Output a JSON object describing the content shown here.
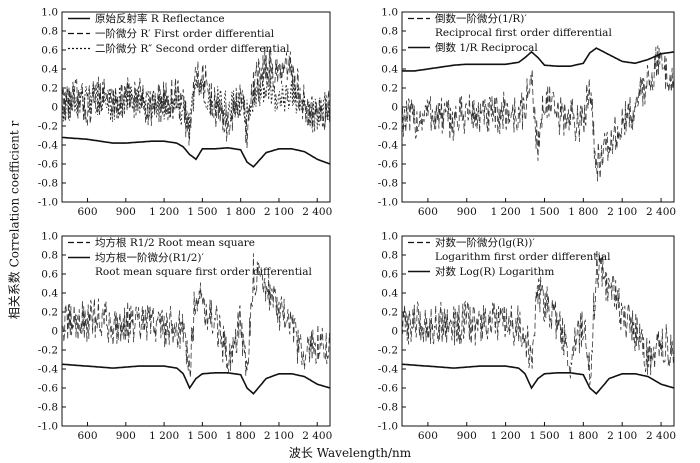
{
  "figure": {
    "shared_ylabel": "相关系数 Correlation coefficient r",
    "shared_xlabel": "波长 Wavelength/nm"
  },
  "chart_data": [
    {
      "type": "line",
      "panel": "top-left",
      "xlim": [
        400,
        2500
      ],
      "ylim": [
        -1.0,
        1.0
      ],
      "xticks": [
        600,
        900,
        1200,
        1500,
        1800,
        2100,
        2400
      ],
      "xtick_labels": [
        "600",
        "900",
        "1 200",
        "1 500",
        "1 800",
        "2 100",
        "2 400"
      ],
      "yticks": [
        1.0,
        0.8,
        0.6,
        0.4,
        0.2,
        0,
        -0.2,
        -0.4,
        -0.6,
        -0.8,
        -1.0
      ],
      "ytick_labels": [
        "1.0",
        "0.8",
        "0.6",
        "0.4",
        "0.2",
        "0",
        "-0.2",
        "-0.4",
        "-0.6",
        "-0.8",
        "-1.0"
      ],
      "legend": [
        {
          "style": "solid",
          "text": "原始反射率 R Reflectance"
        },
        {
          "style": "dashed",
          "text": "一阶微分 R′ First order differential"
        },
        {
          "style": "dotted",
          "text": "二阶微分 R″ Second order differential"
        }
      ],
      "series": [
        {
          "name": "原始反射率 R Reflectance",
          "style": "solid",
          "x": [
            400,
            500,
            600,
            700,
            800,
            900,
            1000,
            1100,
            1200,
            1300,
            1350,
            1400,
            1450,
            1500,
            1600,
            1700,
            1800,
            1850,
            1900,
            2000,
            2100,
            2200,
            2300,
            2400,
            2500
          ],
          "y": [
            -0.32,
            -0.33,
            -0.34,
            -0.36,
            -0.38,
            -0.38,
            -0.37,
            -0.36,
            -0.36,
            -0.38,
            -0.42,
            -0.5,
            -0.55,
            -0.44,
            -0.44,
            -0.43,
            -0.45,
            -0.58,
            -0.63,
            -0.48,
            -0.44,
            -0.44,
            -0.47,
            -0.55,
            -0.6
          ]
        },
        {
          "name": "一阶微分 R′ First order differential",
          "style": "dashed",
          "x": [
            400,
            500,
            600,
            700,
            800,
            900,
            1000,
            1100,
            1200,
            1300,
            1350,
            1400,
            1450,
            1500,
            1600,
            1700,
            1800,
            1850,
            1900,
            2000,
            2100,
            2200,
            2300,
            2400,
            2500
          ],
          "y": [
            0.05,
            0.1,
            0.0,
            0.15,
            0.05,
            0.1,
            0.1,
            0.0,
            0.05,
            0.1,
            0.0,
            -0.3,
            0.4,
            0.3,
            0.0,
            -0.2,
            0.1,
            -0.3,
            0.2,
            0.45,
            0.3,
            0.4,
            0.0,
            -0.1,
            0.0
          ]
        },
        {
          "name": "二阶微分 R″ Second order differential",
          "style": "dotted",
          "x": [
            400,
            500,
            600,
            700,
            800,
            900,
            1000,
            1100,
            1200,
            1300,
            1350,
            1400,
            1450,
            1500,
            1600,
            1700,
            1800,
            1850,
            1900,
            2000,
            2100,
            2200,
            2300,
            2400,
            2500
          ],
          "y": [
            0.0,
            0.05,
            0.05,
            0.1,
            0.0,
            0.1,
            0.05,
            0.05,
            0.0,
            0.05,
            -0.05,
            -0.2,
            0.2,
            0.1,
            0.05,
            0.0,
            0.05,
            -0.1,
            0.1,
            0.2,
            0.1,
            0.15,
            0.0,
            -0.1,
            0.05
          ]
        }
      ]
    },
    {
      "type": "line",
      "panel": "top-right",
      "xlim": [
        400,
        2500
      ],
      "ylim": [
        -1.0,
        1.0
      ],
      "xticks": [
        600,
        900,
        1200,
        1500,
        1800,
        2100,
        2400
      ],
      "xtick_labels": [
        "600",
        "900",
        "1 200",
        "1 500",
        "1 800",
        "2 100",
        "2 400"
      ],
      "yticks": [
        1.0,
        0.8,
        0.6,
        0.4,
        0.2,
        0,
        -0.2,
        -0.4,
        -0.6,
        -0.8,
        -1.0
      ],
      "ytick_labels": [
        "1.0",
        "0.8",
        "0.6",
        "0.4",
        "0.2",
        "0",
        "-0.2",
        "-0.4",
        "-0.6",
        "-0.8",
        "-1.0"
      ],
      "legend": [
        {
          "style": "dashed",
          "text": "倒数一阶微分(1/R)′",
          "text2": "Reciprocal first order differential"
        },
        {
          "style": "solid",
          "text": "倒数 1/R Reciprocal"
        }
      ],
      "series": [
        {
          "name": "倒数一阶微分(1/R)′",
          "style": "dashed",
          "x": [
            400,
            500,
            600,
            700,
            800,
            900,
            1000,
            1100,
            1200,
            1300,
            1350,
            1400,
            1450,
            1500,
            1600,
            1700,
            1800,
            1850,
            1900,
            2000,
            2100,
            2200,
            2300,
            2400,
            2500
          ],
          "y": [
            -0.1,
            -0.15,
            -0.05,
            -0.1,
            -0.15,
            -0.05,
            -0.1,
            -0.1,
            -0.05,
            -0.1,
            0.0,
            0.3,
            -0.45,
            0.1,
            -0.1,
            -0.1,
            -0.2,
            0.3,
            -0.6,
            -0.4,
            -0.2,
            0.0,
            0.3,
            0.5,
            0.2
          ]
        },
        {
          "name": "倒数 1/R Reciprocal",
          "style": "solid",
          "x": [
            400,
            500,
            600,
            700,
            800,
            900,
            1000,
            1100,
            1200,
            1300,
            1350,
            1400,
            1450,
            1500,
            1600,
            1700,
            1800,
            1850,
            1900,
            2000,
            2100,
            2200,
            2300,
            2400,
            2500
          ],
          "y": [
            0.38,
            0.38,
            0.4,
            0.42,
            0.44,
            0.45,
            0.45,
            0.45,
            0.45,
            0.47,
            0.52,
            0.58,
            0.52,
            0.44,
            0.43,
            0.43,
            0.46,
            0.57,
            0.62,
            0.55,
            0.48,
            0.46,
            0.5,
            0.56,
            0.58
          ]
        }
      ]
    },
    {
      "type": "line",
      "panel": "bottom-left",
      "xlim": [
        400,
        2500
      ],
      "ylim": [
        -1.0,
        1.0
      ],
      "xticks": [
        600,
        900,
        1200,
        1500,
        1800,
        2100,
        2400
      ],
      "xtick_labels": [
        "600",
        "900",
        "1 200",
        "1 500",
        "1 800",
        "2 100",
        "2 400"
      ],
      "yticks": [
        1.0,
        0.8,
        0.6,
        0.4,
        0.2,
        0,
        -0.2,
        -0.4,
        -0.6,
        -0.8,
        -1.0
      ],
      "ytick_labels": [
        "1.0",
        "0.8",
        "0.6",
        "0.4",
        "0.2",
        "0",
        "-0.2",
        "-0.4",
        "-0.6",
        "-0.8",
        "-1.0"
      ],
      "legend": [
        {
          "style": "dashed",
          "text": "均方根 R1/2 Root mean square"
        },
        {
          "style": "solid",
          "text": "均方根一阶微分(R1/2)′",
          "text2": "Root mean square first order differential"
        }
      ],
      "series": [
        {
          "name": "均方根 R1/2 Root mean square",
          "style": "dashed",
          "x": [
            400,
            500,
            600,
            700,
            800,
            900,
            1000,
            1100,
            1200,
            1300,
            1350,
            1400,
            1450,
            1500,
            1600,
            1700,
            1800,
            1850,
            1900,
            2000,
            2100,
            2200,
            2300,
            2400,
            2500
          ],
          "y": [
            0.05,
            0.1,
            0.1,
            0.15,
            0.05,
            0.1,
            0.05,
            0.1,
            0.05,
            0.05,
            0.0,
            -0.4,
            0.45,
            0.3,
            0.1,
            -0.3,
            0.1,
            -0.5,
            0.6,
            0.5,
            0.2,
            0.0,
            -0.3,
            -0.1,
            -0.2
          ]
        },
        {
          "name": "均方根一阶微分(R1/2)′",
          "style": "solid",
          "x": [
            400,
            500,
            600,
            700,
            800,
            900,
            1000,
            1100,
            1200,
            1300,
            1350,
            1400,
            1450,
            1500,
            1600,
            1700,
            1800,
            1850,
            1900,
            2000,
            2100,
            2200,
            2300,
            2400,
            2500
          ],
          "y": [
            -0.35,
            -0.36,
            -0.37,
            -0.38,
            -0.39,
            -0.38,
            -0.37,
            -0.37,
            -0.37,
            -0.39,
            -0.45,
            -0.6,
            -0.5,
            -0.45,
            -0.44,
            -0.44,
            -0.46,
            -0.6,
            -0.66,
            -0.5,
            -0.45,
            -0.45,
            -0.48,
            -0.56,
            -0.6
          ]
        }
      ]
    },
    {
      "type": "line",
      "panel": "bottom-right",
      "xlim": [
        400,
        2500
      ],
      "ylim": [
        -1.0,
        1.0
      ],
      "xticks": [
        600,
        900,
        1200,
        1500,
        1800,
        2100,
        2400
      ],
      "xtick_labels": [
        "600",
        "900",
        "1 200",
        "1 500",
        "1 800",
        "2 100",
        "2 400"
      ],
      "yticks": [
        1.0,
        0.8,
        0.6,
        0.4,
        0.2,
        0,
        -0.2,
        -0.4,
        -0.6,
        -0.8,
        -1.0
      ],
      "ytick_labels": [
        "1.0",
        "0.8",
        "0.6",
        "0.4",
        "0.2",
        "0",
        "-0.2",
        "-0.4",
        "-0.6",
        "-0.8",
        "-1.0"
      ],
      "legend": [
        {
          "style": "dashed",
          "text": "对数一阶微分(lg(R))′",
          "text2": "Logarithm first order differential"
        },
        {
          "style": "solid",
          "text": "对数 Log(R) Logarithm"
        }
      ],
      "series": [
        {
          "name": "对数一阶微分(lg(R))′",
          "style": "dashed",
          "x": [
            400,
            500,
            600,
            700,
            800,
            900,
            1000,
            1100,
            1200,
            1300,
            1350,
            1400,
            1450,
            1500,
            1600,
            1700,
            1800,
            1850,
            1900,
            2000,
            2100,
            2200,
            2300,
            2400,
            2500
          ],
          "y": [
            0.05,
            0.1,
            0.05,
            0.1,
            0.05,
            0.1,
            0.05,
            0.1,
            0.05,
            0.05,
            0.0,
            -0.4,
            0.45,
            0.3,
            0.1,
            -0.3,
            0.1,
            -0.5,
            0.65,
            0.5,
            0.2,
            0.0,
            -0.3,
            -0.1,
            -0.2
          ]
        },
        {
          "name": "对数 Log(R) Logarithm",
          "style": "solid",
          "x": [
            400,
            500,
            600,
            700,
            800,
            900,
            1000,
            1100,
            1200,
            1300,
            1350,
            1400,
            1450,
            1500,
            1600,
            1700,
            1800,
            1850,
            1900,
            2000,
            2100,
            2200,
            2300,
            2400,
            2500
          ],
          "y": [
            -0.35,
            -0.36,
            -0.37,
            -0.38,
            -0.39,
            -0.38,
            -0.37,
            -0.37,
            -0.37,
            -0.39,
            -0.45,
            -0.6,
            -0.5,
            -0.45,
            -0.44,
            -0.44,
            -0.46,
            -0.6,
            -0.66,
            -0.5,
            -0.45,
            -0.45,
            -0.48,
            -0.56,
            -0.6
          ]
        }
      ]
    }
  ]
}
